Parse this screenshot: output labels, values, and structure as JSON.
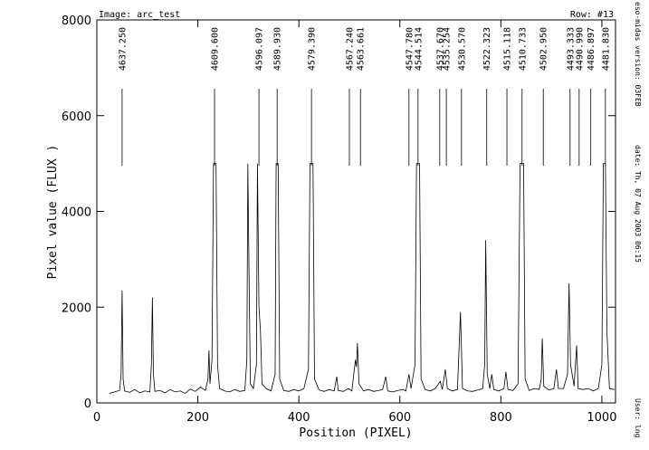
{
  "chart_data": {
    "type": "line",
    "image_label": "Image: arc_test",
    "row_label": "Row: #13",
    "xlabel": "Position (PIXEL)",
    "ylabel": "Pixel value (FLUX )",
    "side_texts": [
      "eso-midas version: 03FEB",
      "date: Th, 07 Aug 2003 06:15",
      "User: lng"
    ],
    "xlim": [
      0,
      1027
    ],
    "ylim": [
      0,
      8000
    ],
    "xticks": [
      0,
      200,
      400,
      600,
      800,
      1000
    ],
    "yticks": [
      0,
      2000,
      4000,
      6000,
      8000
    ],
    "color": "#000000",
    "x": [
      25,
      35,
      45,
      48,
      50,
      52,
      55,
      65,
      75,
      85,
      95,
      105,
      108,
      110,
      112,
      115,
      125,
      135,
      145,
      155,
      165,
      175,
      185,
      195,
      205,
      215,
      220,
      222,
      224,
      228,
      231,
      236,
      239,
      243,
      253,
      263,
      273,
      283,
      293,
      297,
      299,
      301,
      304,
      310,
      316,
      318,
      321,
      324,
      327,
      335,
      345,
      353,
      355,
      359,
      362,
      370,
      380,
      390,
      400,
      410,
      419,
      422,
      428,
      431,
      440,
      450,
      460,
      470,
      475,
      478,
      488,
      498,
      505,
      512,
      514,
      516,
      519,
      528,
      538,
      548,
      558,
      566,
      572,
      576,
      586,
      596,
      606,
      612,
      618,
      622,
      630,
      633,
      639,
      642,
      650,
      660,
      670,
      680,
      684,
      690,
      694,
      704,
      714,
      720,
      724,
      734,
      744,
      754,
      764,
      768,
      770,
      773,
      778,
      782,
      786,
      796,
      806,
      810,
      814,
      824,
      834,
      838,
      845,
      848,
      856,
      866,
      876,
      880,
      882,
      885,
      895,
      905,
      910,
      914,
      924,
      932,
      935,
      938,
      945,
      950,
      953,
      963,
      973,
      983,
      993,
      1000,
      1003,
      1007,
      1010,
      1015,
      1025
    ],
    "values": [
      200,
      230,
      260,
      600,
      2350,
      500,
      250,
      220,
      280,
      210,
      250,
      230,
      800,
      2200,
      600,
      240,
      260,
      210,
      280,
      230,
      250,
      200,
      290,
      240,
      330,
      260,
      500,
      1100,
      400,
      900,
      5000,
      5000,
      800,
      300,
      250,
      230,
      280,
      240,
      260,
      900,
      5000,
      3000,
      400,
      300,
      800,
      5000,
      2000,
      1500,
      400,
      300,
      250,
      600,
      5000,
      5000,
      500,
      260,
      240,
      280,
      250,
      300,
      700,
      5000,
      5000,
      500,
      270,
      240,
      280,
      250,
      550,
      260,
      240,
      300,
      250,
      900,
      750,
      1250,
      400,
      250,
      280,
      240,
      260,
      280,
      550,
      250,
      230,
      260,
      280,
      250,
      600,
      300,
      800,
      5000,
      5000,
      500,
      280,
      250,
      300,
      450,
      280,
      700,
      300,
      250,
      280,
      1900,
      300,
      250,
      240,
      270,
      300,
      800,
      3400,
      600,
      300,
      600,
      280,
      250,
      300,
      650,
      280,
      260,
      400,
      5000,
      5000,
      500,
      260,
      300,
      280,
      500,
      1350,
      350,
      270,
      300,
      700,
      300,
      300,
      600,
      2500,
      800,
      350,
      1200,
      300,
      280,
      300,
      250,
      300,
      800,
      5000,
      5000,
      1500,
      300,
      280
    ],
    "line_ids": [
      {
        "x": 50,
        "label": "4637.250"
      },
      {
        "x": 233,
        "label": "4609.600"
      },
      {
        "x": 321,
        "label": "4596.097"
      },
      {
        "x": 357,
        "label": "4589.930"
      },
      {
        "x": 425,
        "label": "4579.390"
      },
      {
        "x": 500,
        "label": "4567.240"
      },
      {
        "x": 522,
        "label": "4563.661"
      },
      {
        "x": 618,
        "label": "4547.780"
      },
      {
        "x": 636,
        "label": "4544.514"
      },
      {
        "x": 679,
        "label": "4537.670"
      },
      {
        "x": 692,
        "label": "4535.254"
      },
      {
        "x": 722,
        "label": "4530.570"
      },
      {
        "x": 772,
        "label": "4522.323"
      },
      {
        "x": 812,
        "label": "4515.118"
      },
      {
        "x": 842,
        "label": "4510.733"
      },
      {
        "x": 884,
        "label": "4502.950"
      },
      {
        "x": 937,
        "label": "4493.333"
      },
      {
        "x": 955,
        "label": "4490.990"
      },
      {
        "x": 978,
        "label": "4486.897"
      },
      {
        "x": 1007,
        "label": "4481.830"
      }
    ]
  }
}
